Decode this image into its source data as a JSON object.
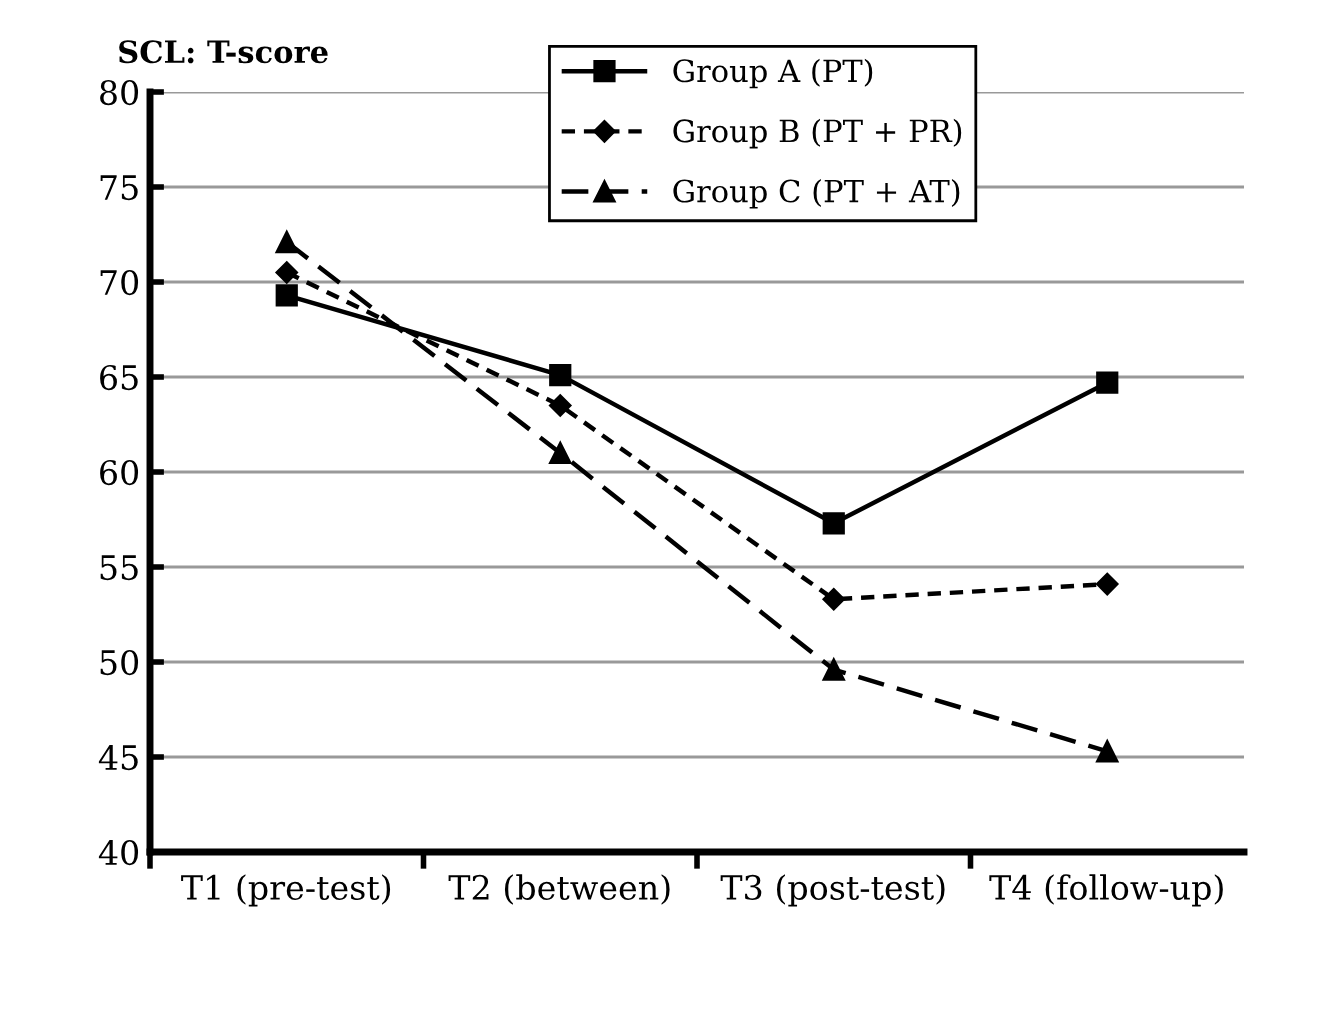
{
  "chart_data": {
    "type": "line",
    "ylabel": "SCL: T-score",
    "categories": [
      "T1 (pre-test)",
      "T2 (between)",
      "T3 (post-test)",
      "T4 (follow-up)"
    ],
    "series": [
      {
        "name": "Group A (PT)",
        "color": "#000000",
        "marker": "square",
        "line_style": "solid",
        "values": [
          69.3,
          65.1,
          57.3,
          64.7
        ]
      },
      {
        "name": "Group B (PT + PR)",
        "color": "#000000",
        "marker": "diamond",
        "line_style": "dotted",
        "values": [
          70.5,
          63.5,
          53.3,
          54.1
        ]
      },
      {
        "name": "Group C (PT + AT)",
        "color": "#000000",
        "marker": "triangle",
        "line_style": "dashed",
        "values": [
          72.1,
          61.0,
          49.6,
          45.3
        ]
      }
    ],
    "ylim": [
      40,
      80
    ],
    "yticks": [
      40,
      45,
      50,
      55,
      60,
      65,
      70,
      75,
      80
    ],
    "grid": "y",
    "legend": "top"
  }
}
